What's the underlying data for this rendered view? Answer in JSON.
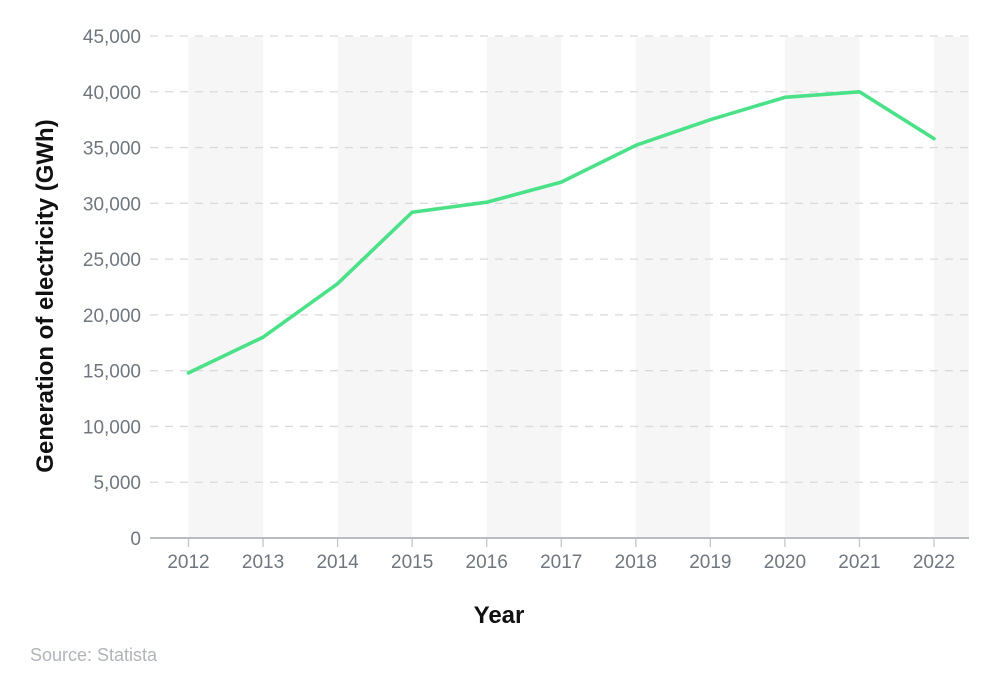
{
  "page": {
    "background": "#ffffff",
    "source_note": "Source: Statista"
  },
  "chart_data": {
    "type": "line",
    "title": "",
    "xlabel": "Year",
    "ylabel": "Generation of electricity (GWh)",
    "categories": [
      "2012",
      "2013",
      "2014",
      "2015",
      "2016",
      "2017",
      "2018",
      "2019",
      "2020",
      "2021",
      "2022"
    ],
    "series": [
      {
        "name": "Generation of electricity (GWh)",
        "values": [
          14800,
          18000,
          22800,
          29200,
          30100,
          31900,
          35200,
          37500,
          39500,
          40000,
          35800
        ]
      }
    ],
    "ylim": [
      0,
      45000
    ],
    "yticks": [
      {
        "value": 0,
        "label": "0"
      },
      {
        "value": 5000,
        "label": "5,000"
      },
      {
        "value": 10000,
        "label": "10,000"
      },
      {
        "value": 15000,
        "label": "15,000"
      },
      {
        "value": 20000,
        "label": "20,000"
      },
      {
        "value": 25000,
        "label": "25,000"
      },
      {
        "value": 30000,
        "label": "30,000"
      },
      {
        "value": 35000,
        "label": "35,000"
      },
      {
        "value": 40000,
        "label": "40,000"
      },
      {
        "value": 45000,
        "label": "45,000"
      }
    ],
    "grid": "horizontal-dashed",
    "legend": "none",
    "band_start_indices": [
      0,
      2,
      4,
      6,
      8,
      10
    ],
    "colors": {
      "line": "#4be189",
      "band": "#f6f6f7",
      "gridline": "#d9dadc",
      "baseline": "#b9bdc2",
      "tick": "#c2c6cb",
      "axis_text": "#6f767e",
      "title_text": "#111111",
      "source_text": "#b1b4b9"
    }
  }
}
